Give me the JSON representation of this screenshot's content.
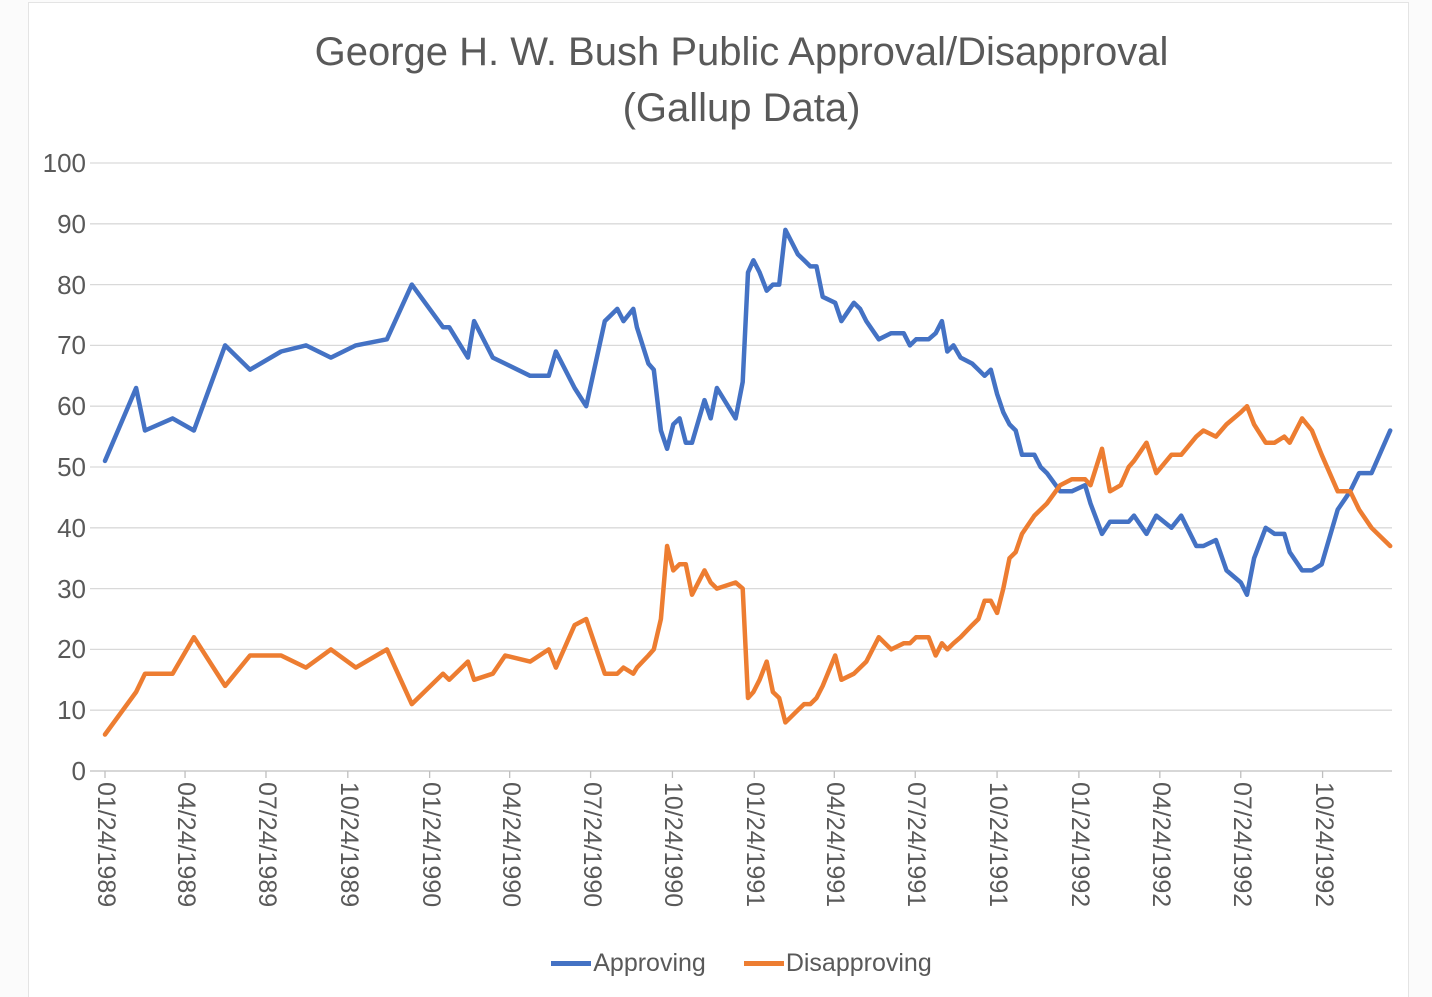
{
  "title": {
    "line1": "George H. W. Bush Public Approval/Disapproval",
    "line2": "(Gallup Data)"
  },
  "colors": {
    "approving": "#4472C4",
    "disapproving": "#ED7D31",
    "gridline": "#D9D9D9",
    "axis_line": "#BFBFBF",
    "text": "#595959",
    "background": "#FFFFFF"
  },
  "legend": {
    "items": [
      {
        "label": "Approving",
        "color": "#4472C4"
      },
      {
        "label": "Disapproving",
        "color": "#ED7D31"
      }
    ]
  },
  "chart_data": {
    "type": "line",
    "title": "George H. W. Bush Public Approval/Disapproval (Gallup Data)",
    "xlabel": "",
    "ylabel": "",
    "ylim": [
      0,
      100
    ],
    "y_ticks": [
      0,
      10,
      20,
      30,
      40,
      50,
      60,
      70,
      80,
      90,
      100
    ],
    "grid": "horizontal",
    "legend_position": "bottom",
    "x_tick_labels": [
      "01/24/1989",
      "04/24/1989",
      "07/24/1989",
      "10/24/1989",
      "01/24/1990",
      "04/24/1990",
      "07/24/1990",
      "10/24/1990",
      "01/24/1991",
      "04/24/1991",
      "07/24/1991",
      "10/24/1991",
      "01/24/1992",
      "04/24/1992",
      "07/24/1992",
      "10/24/1992"
    ],
    "x": [
      "01/24/1989",
      "02/28/1989",
      "03/10/1989",
      "04/10/1989",
      "05/04/1989",
      "06/08/1989",
      "07/06/1989",
      "08/10/1989",
      "09/07/1989",
      "10/05/1989",
      "11/02/1989",
      "12/07/1989",
      "01/04/1990",
      "02/08/1990",
      "02/15/1990",
      "03/08/1990",
      "03/15/1990",
      "04/05/1990",
      "04/19/1990",
      "05/17/1990",
      "06/07/1990",
      "06/15/1990",
      "07/06/1990",
      "07/19/1990",
      "08/09/1990",
      "08/16/1990",
      "08/23/1990",
      "08/30/1990",
      "09/10/1990",
      "09/14/1990",
      "09/27/1990",
      "10/03/1990",
      "10/11/1990",
      "10/18/1990",
      "10/25/1990",
      "11/01/1990",
      "11/08/1990",
      "11/15/1990",
      "11/29/1990",
      "12/06/1990",
      "12/13/1990",
      "01/03/1991",
      "01/11/1991",
      "01/17/1991",
      "01/23/1991",
      "01/30/1991",
      "02/07/1991",
      "02/14/1991",
      "02/21/1991",
      "02/28/1991",
      "03/07/1991",
      "03/14/1991",
      "03/21/1991",
      "03/28/1991",
      "04/04/1991",
      "04/11/1991",
      "04/25/1991",
      "05/02/1991",
      "05/16/1991",
      "05/23/1991",
      "05/30/1991",
      "06/13/1991",
      "06/27/1991",
      "07/11/1991",
      "07/18/1991",
      "07/25/1991",
      "08/08/1991",
      "08/16/1991",
      "08/23/1991",
      "08/29/1991",
      "09/05/1991",
      "09/13/1991",
      "09/26/1991",
      "10/03/1991",
      "10/10/1991",
      "10/17/1991",
      "10/24/1991",
      "10/31/1991",
      "11/07/1991",
      "11/14/1991",
      "11/21/1991",
      "12/05/1991",
      "12/12/1991",
      "12/19/1991",
      "01/03/1992",
      "01/16/1992",
      "01/31/1992",
      "02/06/1992",
      "02/19/1992",
      "02/28/1992",
      "03/11/1992",
      "03/20/1992",
      "03/26/1992",
      "04/09/1992",
      "04/20/1992",
      "05/07/1992",
      "05/18/1992",
      "06/04/1992",
      "06/12/1992",
      "06/26/1992",
      "07/08/1992",
      "07/24/1992",
      "07/31/1992",
      "08/08/1992",
      "08/21/1992",
      "08/31/1992",
      "09/11/1992",
      "09/17/1992",
      "10/01/1992",
      "10/12/1992",
      "10/23/1992",
      "11/10/1992",
      "11/24/1992",
      "12/04/1992",
      "12/18/1992",
      "01/08/1993"
    ],
    "series": [
      {
        "name": "Approving",
        "color": "#4472C4",
        "values": [
          51,
          63,
          56,
          58,
          56,
          70,
          66,
          69,
          70,
          68,
          70,
          71,
          80,
          73,
          73,
          68,
          74,
          68,
          67,
          65,
          65,
          69,
          63,
          60,
          74,
          75,
          76,
          74,
          76,
          73,
          67,
          66,
          56,
          53,
          57,
          58,
          54,
          54,
          61,
          58,
          63,
          58,
          64,
          82,
          84,
          82,
          79,
          80,
          80,
          89,
          87,
          85,
          84,
          83,
          83,
          78,
          77,
          74,
          77,
          76,
          74,
          71,
          72,
          72,
          70,
          71,
          71,
          72,
          74,
          69,
          70,
          68,
          67,
          66,
          65,
          66,
          62,
          59,
          57,
          56,
          52,
          52,
          50,
          49,
          46,
          46,
          47,
          44,
          39,
          41,
          41,
          41,
          42,
          39,
          42,
          40,
          42,
          37,
          37,
          38,
          33,
          31,
          29,
          35,
          40,
          39,
          39,
          36,
          33,
          33,
          34,
          43,
          46,
          49,
          49,
          56
        ]
      },
      {
        "name": "Disapproving",
        "color": "#ED7D31",
        "values": [
          6,
          13,
          16,
          16,
          22,
          14,
          19,
          19,
          17,
          20,
          17,
          20,
          11,
          16,
          15,
          18,
          15,
          16,
          19,
          18,
          20,
          17,
          24,
          25,
          16,
          16,
          16,
          17,
          16,
          17,
          19,
          20,
          25,
          37,
          33,
          34,
          34,
          29,
          33,
          31,
          30,
          31,
          30,
          12,
          13,
          15,
          18,
          13,
          12,
          8,
          9,
          10,
          11,
          11,
          12,
          14,
          19,
          15,
          16,
          17,
          18,
          22,
          20,
          21,
          21,
          22,
          22,
          19,
          21,
          20,
          21,
          22,
          24,
          25,
          28,
          28,
          26,
          30,
          35,
          36,
          39,
          42,
          43,
          44,
          47,
          48,
          48,
          47,
          53,
          46,
          47,
          50,
          51,
          54,
          49,
          52,
          52,
          55,
          56,
          55,
          57,
          59,
          60,
          57,
          54,
          54,
          55,
          54,
          58,
          56,
          52,
          46,
          46,
          43,
          40,
          37
        ]
      }
    ]
  }
}
